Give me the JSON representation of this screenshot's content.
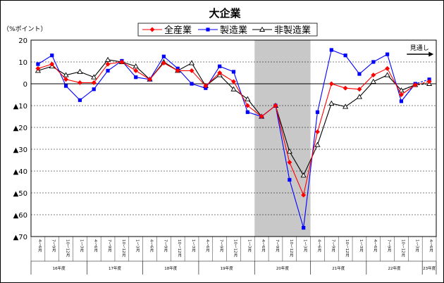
{
  "chart_data": {
    "type": "line",
    "title": "大企業",
    "unit": "（%ポイント）",
    "ylim": [
      -70,
      20
    ],
    "y_ticks": [
      20,
      10,
      0,
      -10,
      -20,
      -30,
      -40,
      -50,
      -60,
      -70
    ],
    "y_tick_labels": [
      "20",
      "10",
      "0",
      "▲10",
      "▲20",
      "▲30",
      "▲40",
      "▲50",
      "▲60",
      "▲70"
    ],
    "grid": true,
    "legend_position": "top",
    "shaded_period": {
      "from_index": 16,
      "to_index": 20
    },
    "outlook_label": "見通し",
    "x": [
      "4～6月",
      "7～9月",
      "10～12月",
      "1～3月",
      "4～6月",
      "7～9月",
      "10～12月",
      "1～3月",
      "4～6月",
      "7～9月",
      "10～12月",
      "1～3月",
      "4～6月",
      "7～9月",
      "10～12月",
      "1～3月",
      "4～6月",
      "7～9月",
      "10～12月",
      "1～3月",
      "4～6月",
      "7～9月",
      "10～12月",
      "1～3月",
      "4～6月",
      "7～9月",
      "10～12月",
      "1～3月",
      "4～6月"
    ],
    "fiscal_years": [
      {
        "label": "16年度",
        "start": 0,
        "end": 3
      },
      {
        "label": "17年度",
        "start": 4,
        "end": 7
      },
      {
        "label": "18年度",
        "start": 8,
        "end": 11
      },
      {
        "label": "19年度",
        "start": 12,
        "end": 15
      },
      {
        "label": "20年度",
        "start": 16,
        "end": 19
      },
      {
        "label": "21年度",
        "start": 20,
        "end": 23
      },
      {
        "label": "22年度",
        "start": 24,
        "end": 27
      },
      {
        "label": "23年度",
        "start": 28,
        "end": 28
      }
    ],
    "series": [
      {
        "name": "全産業",
        "color": "#ff0000",
        "marker": "diamond",
        "forecast_from": 27,
        "values": [
          7,
          9,
          2,
          0.5,
          0.5,
          9,
          10,
          6,
          2,
          9.5,
          6,
          6,
          -1,
          5,
          1,
          -10,
          -15,
          -10,
          -36,
          -51,
          -22,
          0,
          -2,
          -2.5,
          4,
          7,
          -5,
          -0.5,
          1
        ]
      },
      {
        "name": "製造業",
        "color": "#0000ff",
        "marker": "square",
        "forecast_from": 27,
        "values": [
          9,
          13,
          -1,
          -7.5,
          -2.5,
          6,
          10.5,
          3,
          2,
          12.5,
          7,
          0,
          -2,
          8,
          5.5,
          -13,
          -15,
          -10,
          -44,
          -66,
          -13,
          15.5,
          13,
          4.5,
          10,
          13.5,
          -8,
          0,
          2
        ]
      },
      {
        "name": "非製造業",
        "color": "#000000",
        "marker": "triangle",
        "forecast_from": 27,
        "values": [
          6,
          8,
          4,
          5.5,
          3,
          11,
          10,
          8,
          2,
          10,
          6,
          9.5,
          -1,
          4,
          -2.5,
          -7,
          -15,
          -10,
          -31,
          -42,
          -28,
          -9,
          -10.5,
          -6,
          1,
          4,
          -3,
          -0.5,
          0
        ]
      }
    ]
  }
}
